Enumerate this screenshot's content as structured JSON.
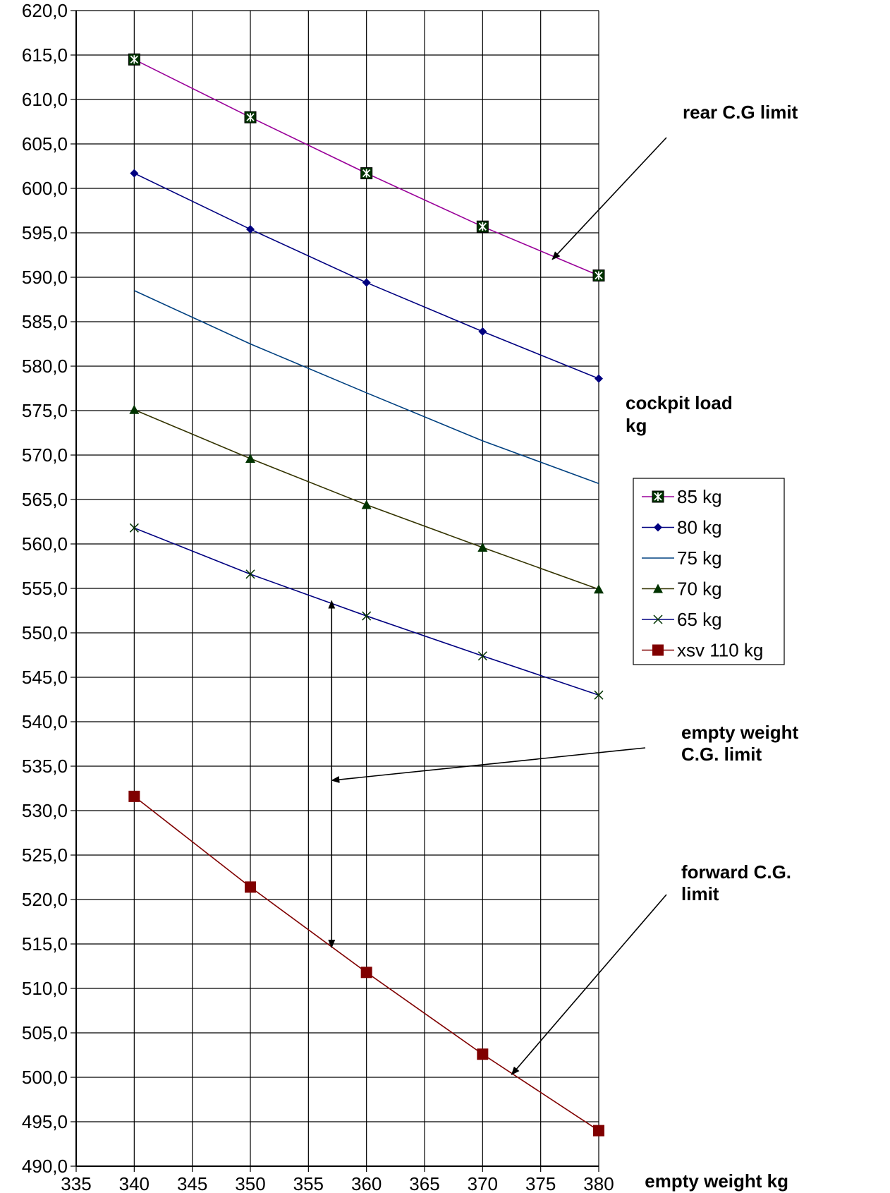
{
  "chart_data": {
    "type": "line",
    "title": "",
    "xlabel": "empty weight kg",
    "ylabel": "",
    "xlim": [
      335,
      380
    ],
    "ylim": [
      490,
      620
    ],
    "x_ticks": [
      "335",
      "340",
      "345",
      "350",
      "355",
      "360",
      "365",
      "370",
      "375",
      "380"
    ],
    "y_ticks": [
      "490,0",
      "495,0",
      "500,0",
      "505,0",
      "510,0",
      "515,0",
      "520,0",
      "525,0",
      "530,0",
      "535,0",
      "540,0",
      "545,0",
      "550,0",
      "555,0",
      "560,0",
      "565,0",
      "570,0",
      "575,0",
      "580,0",
      "585,0",
      "590,0",
      "595,0",
      "600,0",
      "605,0",
      "610,0",
      "615,0",
      "620,0"
    ],
    "grid": true,
    "legend_title": "cockpit load kg",
    "legend_title_lines": [
      "cockpit load",
      "kg"
    ],
    "legend_position": "right",
    "x": [
      340,
      350,
      360,
      370,
      380
    ],
    "series": [
      {
        "name": "85 kg",
        "values": [
          614.5,
          608.0,
          601.7,
          595.7,
          590.2
        ],
        "color": "#990099",
        "marker": "boxed-x",
        "marker_color": "#003300"
      },
      {
        "name": "80 kg",
        "values": [
          601.7,
          595.4,
          589.4,
          583.9,
          578.6
        ],
        "color": "#000080",
        "marker": "diamond",
        "marker_color": "#000080"
      },
      {
        "name": "75 kg",
        "values": [
          588.5,
          582.5,
          577.0,
          571.6,
          566.8
        ],
        "color": "#004080",
        "marker": "none",
        "marker_color": "#004080"
      },
      {
        "name": "70 kg",
        "values": [
          575.1,
          569.6,
          564.4,
          559.6,
          554.9
        ],
        "color": "#333300",
        "marker": "triangle",
        "marker_color": "#003300"
      },
      {
        "name": "65 kg",
        "values": [
          561.8,
          556.6,
          551.9,
          547.4,
          543.0
        ],
        "color": "#000080",
        "marker": "x",
        "marker_color": "#003300"
      },
      {
        "name": "xsv 110 kg",
        "values": [
          531.6,
          521.4,
          511.8,
          502.6,
          494.0
        ],
        "color": "#800000",
        "marker": "square",
        "marker_color": "#800000"
      }
    ],
    "annotations": [
      {
        "id": "rear",
        "lines": [
          "rear C.G limit"
        ],
        "points_to": [
          376,
          592
        ]
      },
      {
        "id": "empty",
        "lines": [
          "empty weight",
          "C.G. limit"
        ],
        "points_to": [
          357,
          533.4
        ]
      },
      {
        "id": "forward",
        "lines": [
          "forward C.G.",
          "limit"
        ],
        "points_to": [
          372.5,
          500.3
        ]
      }
    ],
    "range_arrow": {
      "x": 357,
      "y_from": 553.6,
      "y_to": 514.6
    }
  }
}
